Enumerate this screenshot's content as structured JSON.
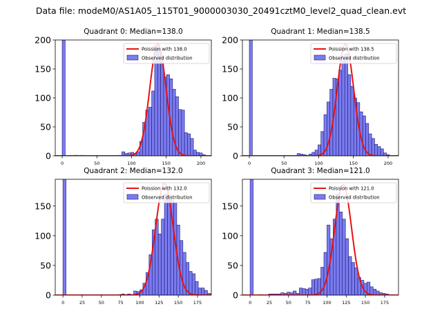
{
  "figure_title": "Data file: modeM0/AS1A05_115T01_9000003030_20491cztM0_level2_quad_clean.evt",
  "colors": {
    "bar_fill": "#7b7bf0",
    "bar_edge": "#1a1a6e",
    "curve": "#e8100f"
  },
  "chart_data": [
    {
      "type": "bar",
      "title": "Quadrant 0: Median=138.0",
      "legend": [
        "Poission with 138.0",
        "Observed distribution"
      ],
      "legend_position": "top-right",
      "xlim": [
        -10,
        215
      ],
      "ylim": [
        0,
        200
      ],
      "xticks": [
        0,
        50,
        100,
        150,
        200
      ],
      "yticks": [
        0,
        50,
        100,
        150,
        200
      ],
      "ytick_labels": [
        "0",
        "50",
        "100",
        "150",
        "200"
      ],
      "bin_edges_start": 0,
      "bin_width": 4.3,
      "values": [
        200,
        0,
        0,
        0,
        1,
        0,
        1,
        0,
        0,
        0,
        0,
        0,
        0,
        0,
        0,
        0,
        0,
        0,
        0,
        1,
        7,
        4,
        5,
        6,
        4,
        7,
        25,
        58,
        79,
        84,
        112,
        190,
        185,
        162,
        136,
        140,
        133,
        115,
        102,
        80,
        79,
        40,
        38,
        30,
        10,
        6,
        5,
        2
      ],
      "poisson_mean": 138.0,
      "poisson_peak": 193,
      "poisson_sd": 11.7
    },
    {
      "type": "bar",
      "title": "Quadrant 1: Median=138.5",
      "legend": [
        "Poission with 138.5",
        "Observed distribution"
      ],
      "legend_position": "top-right",
      "xlim": [
        -10,
        215
      ],
      "ylim": [
        0,
        200
      ],
      "xticks": [
        0,
        50,
        100,
        150,
        200
      ],
      "yticks": [
        0,
        50,
        100,
        150,
        200
      ],
      "ytick_labels": [
        "0",
        "50",
        "100",
        "150",
        "200"
      ],
      "bin_edges_start": 0,
      "bin_width": 4.3,
      "values": [
        200,
        0,
        0,
        0,
        0,
        0,
        0,
        0,
        0,
        0,
        0,
        0,
        0,
        0,
        0,
        0,
        4,
        3,
        2,
        1,
        3,
        6,
        10,
        19,
        42,
        71,
        93,
        115,
        134,
        133,
        148,
        172,
        176,
        140,
        120,
        100,
        92,
        76,
        69,
        56,
        38,
        30,
        20,
        16,
        12,
        5,
        2
      ],
      "poisson_mean": 138.5,
      "poisson_peak": 193,
      "poisson_sd": 11.8
    },
    {
      "type": "bar",
      "title": "Quadrant 2: Median=132.0",
      "legend": [
        "Poission with 132.0",
        "Observed distribution"
      ],
      "legend_position": "top-right",
      "xlim": [
        -10,
        193
      ],
      "ylim": [
        0,
        195
      ],
      "xticks": [
        0,
        25,
        50,
        75,
        100,
        125,
        150,
        175
      ],
      "yticks": [
        0,
        50,
        100,
        150
      ],
      "ytick_labels": [
        "0",
        "50",
        "100",
        "150"
      ],
      "bin_edges_start": 0,
      "bin_width": 4.0,
      "values": [
        200,
        0,
        0,
        0,
        0,
        0,
        0,
        0,
        0,
        0,
        0,
        0,
        0,
        0,
        0,
        0,
        0,
        0,
        1,
        2,
        1,
        2,
        1,
        7,
        6,
        9,
        20,
        38,
        68,
        110,
        128,
        103,
        128,
        170,
        160,
        160,
        155,
        118,
        92,
        72,
        55,
        40,
        36,
        23,
        12,
        12,
        8,
        3
      ],
      "poisson_mean": 132.0,
      "poisson_peak": 188,
      "poisson_sd": 11.5
    },
    {
      "type": "bar",
      "title": "Quadrant 3: Median=121.0",
      "legend": [
        "Poission with 121.0",
        "Observed distribution"
      ],
      "legend_position": "top-right",
      "xlim": [
        -10,
        193
      ],
      "ylim": [
        0,
        195
      ],
      "xticks": [
        0,
        25,
        50,
        75,
        100,
        125,
        150,
        175
      ],
      "yticks": [
        0,
        50,
        100,
        150
      ],
      "ytick_labels": [
        "0",
        "50",
        "100",
        "150"
      ],
      "bin_edges_start": 0,
      "bin_width": 4.0,
      "values": [
        200,
        0,
        0,
        1,
        0,
        0,
        2,
        2,
        2,
        2,
        4,
        3,
        5,
        4,
        7,
        3,
        12,
        11,
        10,
        12,
        26,
        27,
        28,
        47,
        72,
        118,
        95,
        128,
        170,
        140,
        128,
        95,
        65,
        55,
        46,
        30,
        25,
        20,
        22,
        14,
        10,
        7,
        4,
        3,
        2
      ],
      "poisson_mean": 121.0,
      "poisson_peak": 186,
      "poisson_sd": 11.0
    }
  ]
}
